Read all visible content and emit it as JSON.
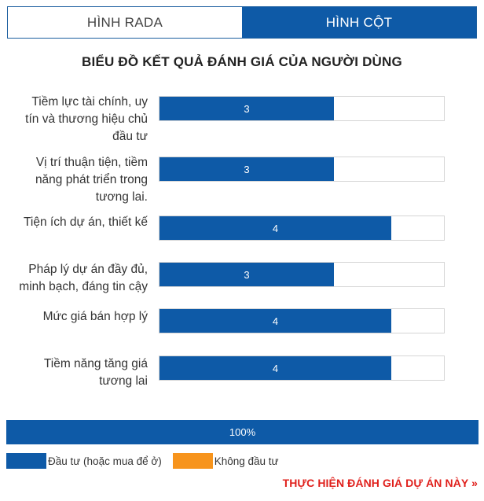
{
  "tabs": {
    "radar": "HÌNH RADA",
    "bar": "HÌNH CỘT"
  },
  "title": "BIỂU ĐỒ KẾT QUẢ ĐÁNH GIÁ CỦA NGƯỜI DÙNG",
  "chart_data": {
    "type": "bar",
    "orientation": "horizontal",
    "title": "BIỂU ĐỒ KẾT QUẢ ĐÁNH GIÁ CỦA NGƯỜI DÙNG",
    "categories": [
      "Tiềm lực tài chính, uy tín và thương hiệu chủ đầu tư",
      "Vị trí thuận tiện, tiềm năng phát triển trong tương lai.",
      "Tiện ích dự án, thiết kế",
      "Pháp lý dự án đầy đủ, minh bạch, đáng tin cậy",
      "Mức giá bán hợp lý",
      "Tiềm năng tăng giá tương lai"
    ],
    "category_lines": [
      [
        "Tiềm lực tài chính, uy",
        "tín và thương hiệu chủ",
        "đầu tư"
      ],
      [
        "Vị trí thuận tiện, tiềm",
        "năng phát triển trong",
        "tương lai."
      ],
      [
        "Tiện ích dự án, thiết kế"
      ],
      [
        "Pháp lý dự án đầy đủ,",
        "minh bạch, đáng tin cậy"
      ],
      [
        "Mức giá bán hợp lý"
      ],
      [
        "Tiềm năng tăng giá",
        "tương lai"
      ]
    ],
    "values": [
      3,
      3,
      4,
      3,
      4,
      4
    ],
    "value_labels": [
      "3",
      "3",
      "4",
      "3",
      "4",
      "4"
    ],
    "xlim": [
      0,
      5
    ],
    "bar_color": "#0e5aa7"
  },
  "summary": {
    "percent_value": 100,
    "percent_label": "100%"
  },
  "legend": [
    {
      "label": "Đầu tư (hoặc mua để ở)",
      "color": "#0e5aa7"
    },
    {
      "label": "Không đầu tư",
      "color": "#f7941d"
    }
  ],
  "cta": "THỰC HIỆN ĐÁNH GIÁ DỰ ÁN NÀY »"
}
